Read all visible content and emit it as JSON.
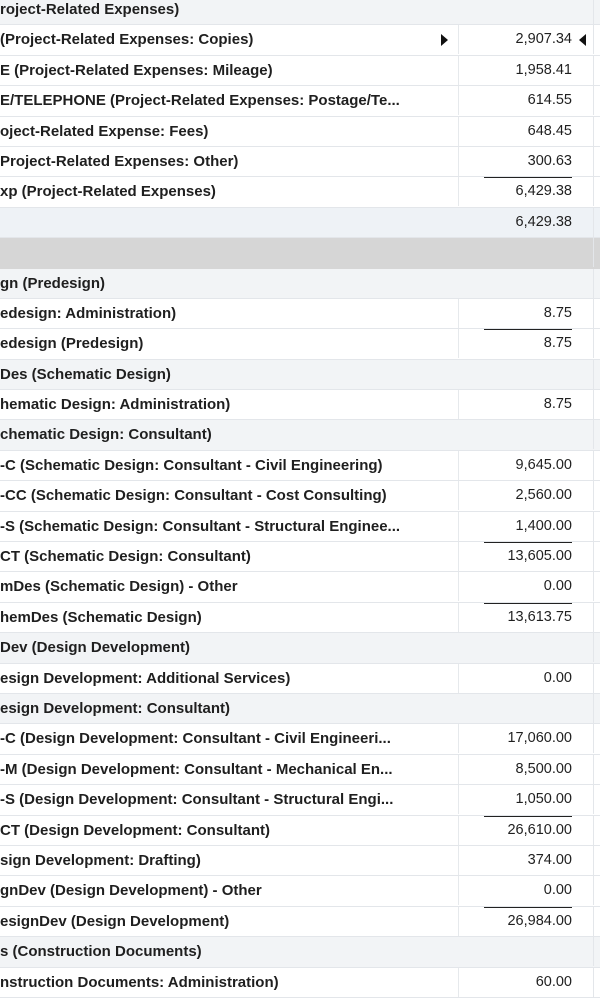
{
  "report": {
    "rows": [
      {
        "type": "header",
        "label": "roject-Related Expenses)",
        "amount": ""
      },
      {
        "type": "item",
        "label": "(Project-Related Expenses: Copies)",
        "amount": "2,907.34",
        "selected": true
      },
      {
        "type": "item",
        "label": "E (Project-Related Expenses: Mileage)",
        "amount": "1,958.41"
      },
      {
        "type": "item",
        "label": "E/TELEPHONE (Project-Related Expenses: Postage/Te...",
        "amount": "614.55"
      },
      {
        "type": "item",
        "label": "oject-Related Expense: Fees)",
        "amount": "648.45"
      },
      {
        "type": "item",
        "label": "Project-Related Expenses: Other)",
        "amount": "300.63"
      },
      {
        "type": "subtotal",
        "label": "xp (Project-Related Expenses)",
        "amount": "6,429.38",
        "ruled": true
      },
      {
        "type": "subtotal-shaded",
        "label": "",
        "amount": "6,429.38"
      },
      {
        "type": "gap",
        "label": "",
        "amount": ""
      },
      {
        "type": "header",
        "label": "gn (Predesign)",
        "amount": ""
      },
      {
        "type": "item",
        "label": "edesign: Administration)",
        "amount": "8.75"
      },
      {
        "type": "subtotal",
        "label": "edesign (Predesign)",
        "amount": "8.75",
        "ruled": true
      },
      {
        "type": "header",
        "label": "Des (Schematic Design)",
        "amount": ""
      },
      {
        "type": "item",
        "label": "hematic Design: Administration)",
        "amount": "8.75"
      },
      {
        "type": "header",
        "label": "chematic Design: Consultant)",
        "amount": ""
      },
      {
        "type": "item",
        "label": "-C (Schematic Design: Consultant - Civil Engineering)",
        "amount": "9,645.00"
      },
      {
        "type": "item",
        "label": "-CC (Schematic Design: Consultant - Cost Consulting)",
        "amount": "2,560.00"
      },
      {
        "type": "item",
        "label": "-S (Schematic Design: Consultant - Structural Enginee...",
        "amount": "1,400.00"
      },
      {
        "type": "subtotal",
        "label": "CT (Schematic Design: Consultant)",
        "amount": "13,605.00",
        "ruled": true
      },
      {
        "type": "item",
        "label": "mDes (Schematic Design) - Other",
        "amount": "0.00"
      },
      {
        "type": "subtotal",
        "label": "hemDes (Schematic Design)",
        "amount": "13,613.75",
        "ruled": true
      },
      {
        "type": "header",
        "label": "Dev (Design Development)",
        "amount": ""
      },
      {
        "type": "item",
        "label": "esign Development: Additional Services)",
        "amount": "0.00"
      },
      {
        "type": "header",
        "label": "esign Development: Consultant)",
        "amount": ""
      },
      {
        "type": "item",
        "label": "-C (Design Development: Consultant - Civil Engineeri...",
        "amount": "17,060.00"
      },
      {
        "type": "item",
        "label": "-M (Design Development: Consultant - Mechanical En...",
        "amount": "8,500.00"
      },
      {
        "type": "item",
        "label": "-S (Design Development: Consultant - Structural Engi...",
        "amount": "1,050.00"
      },
      {
        "type": "subtotal",
        "label": "CT (Design Development: Consultant)",
        "amount": "26,610.00",
        "ruled": true
      },
      {
        "type": "item",
        "label": "sign Development: Drafting)",
        "amount": "374.00"
      },
      {
        "type": "item",
        "label": "gnDev (Design Development) - Other",
        "amount": "0.00"
      },
      {
        "type": "subtotal",
        "label": "esignDev (Design Development)",
        "amount": "26,984.00",
        "ruled": true
      },
      {
        "type": "header",
        "label": "s (Construction Documents)",
        "amount": ""
      },
      {
        "type": "item",
        "label": "nstruction Documents: Administration)",
        "amount": "60.00"
      }
    ]
  }
}
